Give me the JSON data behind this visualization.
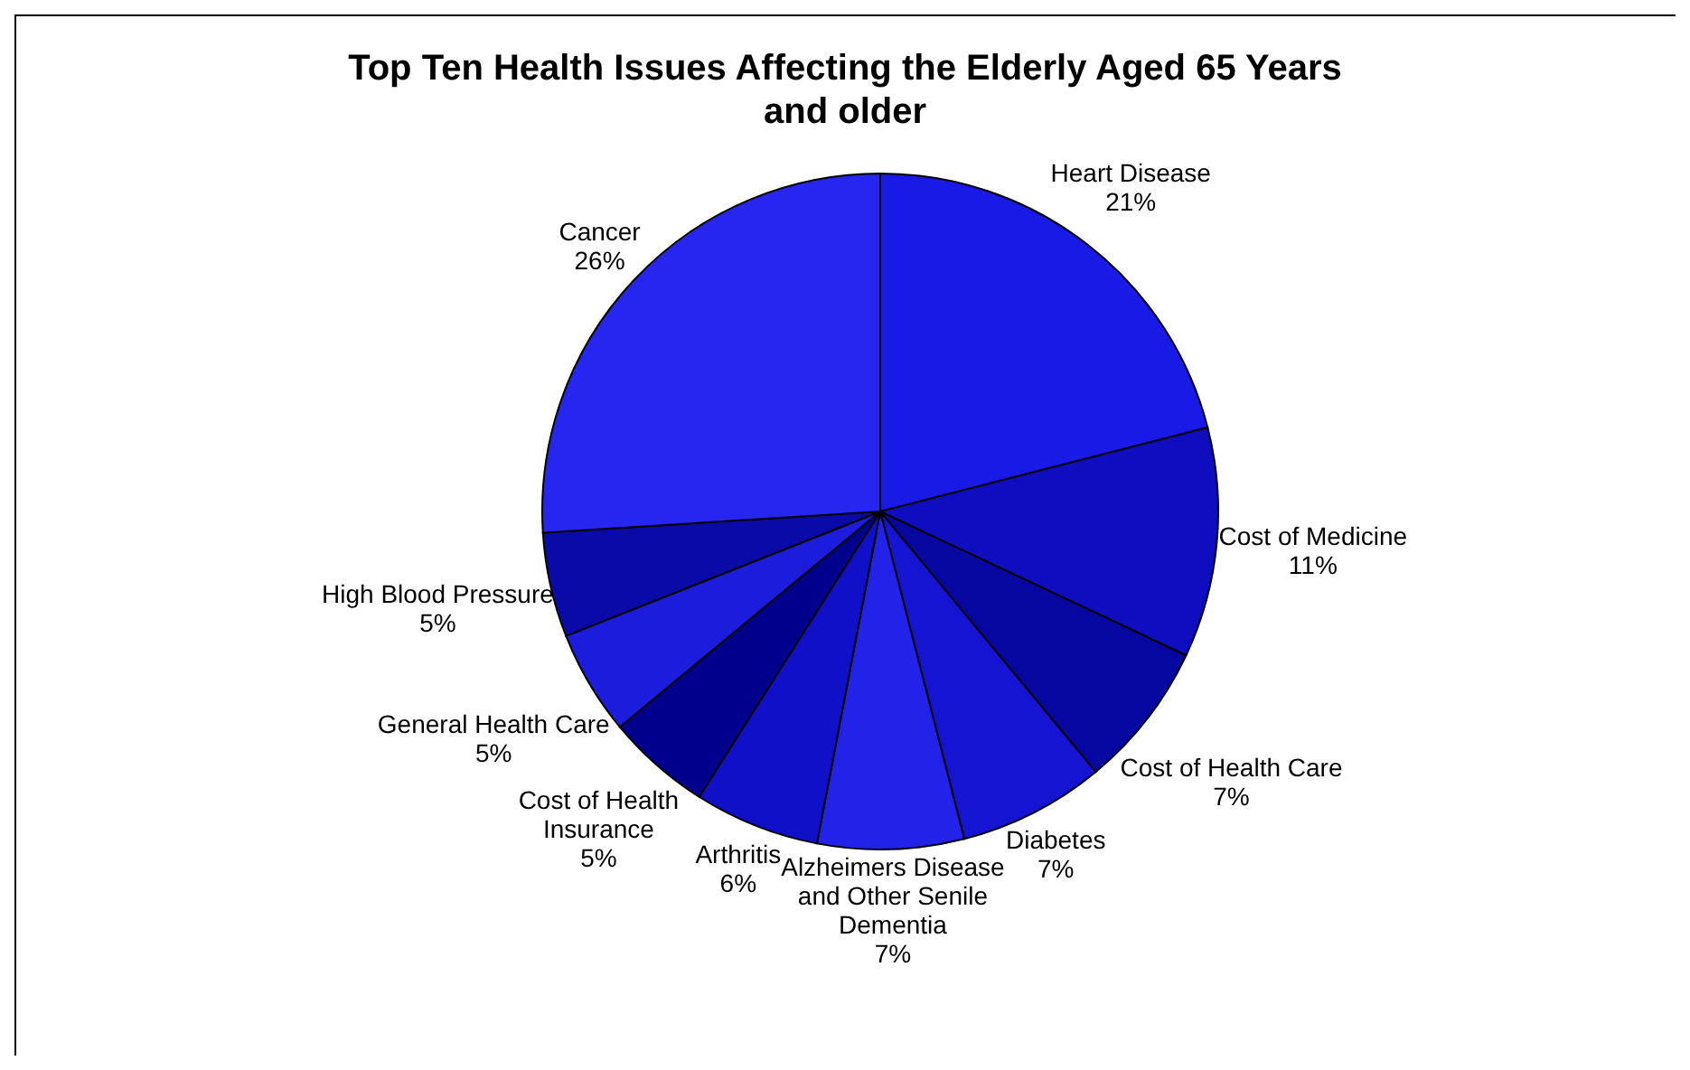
{
  "chart_data": {
    "type": "pie",
    "title": "Top Ten Health Issues Affecting the Elderly Aged 65 Years and older",
    "categories": [
      "Heart Disease",
      "Cost of Medicine",
      "Cost of Health Care",
      "Diabetes",
      "Alzheimers Disease and Other Senile Dementia",
      "Arthritis",
      "Cost of Health Insurance",
      "General Health Care",
      "High Blood Pressure",
      "Cancer"
    ],
    "values": [
      21,
      11,
      7,
      7,
      7,
      6,
      5,
      5,
      5,
      26
    ],
    "value_labels": [
      "21%",
      "11%",
      "7%",
      "7%",
      "7%",
      "6%",
      "5%",
      "5%",
      "5%",
      "26%"
    ],
    "colors": [
      "#1a1ae6",
      "#0e0ec0",
      "#0606a0",
      "#1414d2",
      "#2222e8",
      "#1010c8",
      "#00008c",
      "#1c1cdc",
      "#0a0aa8",
      "#2626f0"
    ]
  }
}
